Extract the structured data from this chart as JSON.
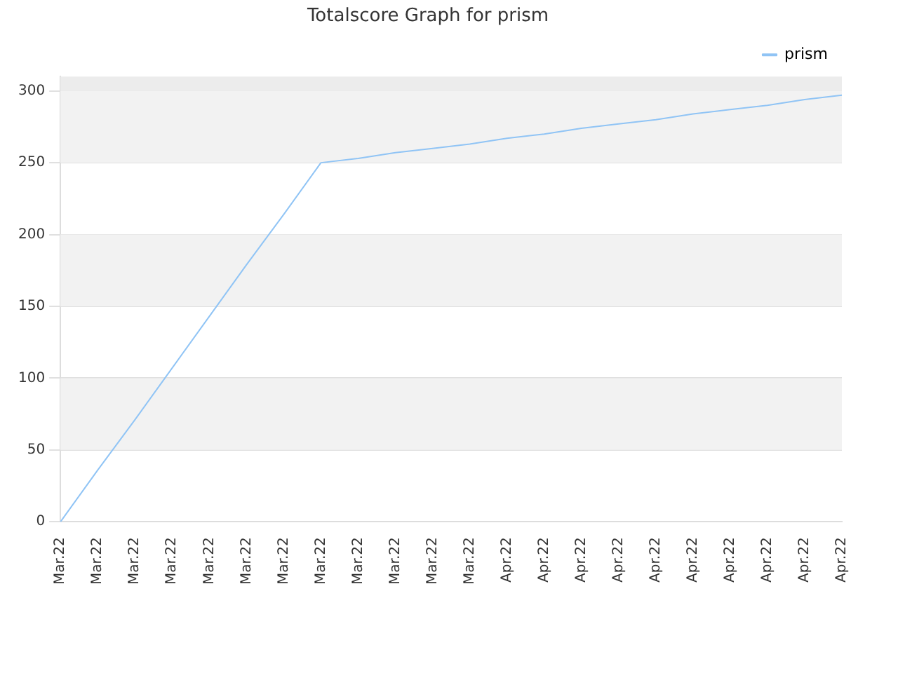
{
  "chart_data": {
    "type": "line",
    "title": "Totalscore Graph for prism",
    "categories": [
      "Mar.22",
      "Mar.22",
      "Mar.22",
      "Mar.22",
      "Mar.22",
      "Mar.22",
      "Mar.22",
      "Mar.22",
      "Mar.22",
      "Mar.22",
      "Mar.22",
      "Mar.22",
      "Apr.22",
      "Apr.22",
      "Apr.22",
      "Apr.22",
      "Apr.22",
      "Apr.22",
      "Apr.22",
      "Apr.22",
      "Apr.22",
      "Apr.22"
    ],
    "series": [
      {
        "name": "prism",
        "color": "#90c4f5",
        "values": [
          0,
          36,
          71,
          107,
          143,
          179,
          214,
          250,
          253,
          257,
          260,
          263,
          267,
          270,
          274,
          277,
          280,
          284,
          287,
          290,
          294,
          297
        ]
      }
    ],
    "ylim": [
      0,
      310
    ],
    "yticks": [
      0,
      50,
      100,
      150,
      200,
      250,
      300
    ],
    "grid": "y",
    "legend": "top right",
    "marker": "none",
    "bands": [
      {
        "axis": "y",
        "from": 50,
        "to": 100,
        "color": "#f2f2f2"
      },
      {
        "axis": "y",
        "from": 150,
        "to": 200,
        "color": "#f2f2f2"
      },
      {
        "axis": "y",
        "from": 250,
        "to": 300,
        "color": "#f2f2f2"
      },
      {
        "axis": "y",
        "from": 300,
        "to": 310,
        "color": "#ececec"
      }
    ]
  }
}
